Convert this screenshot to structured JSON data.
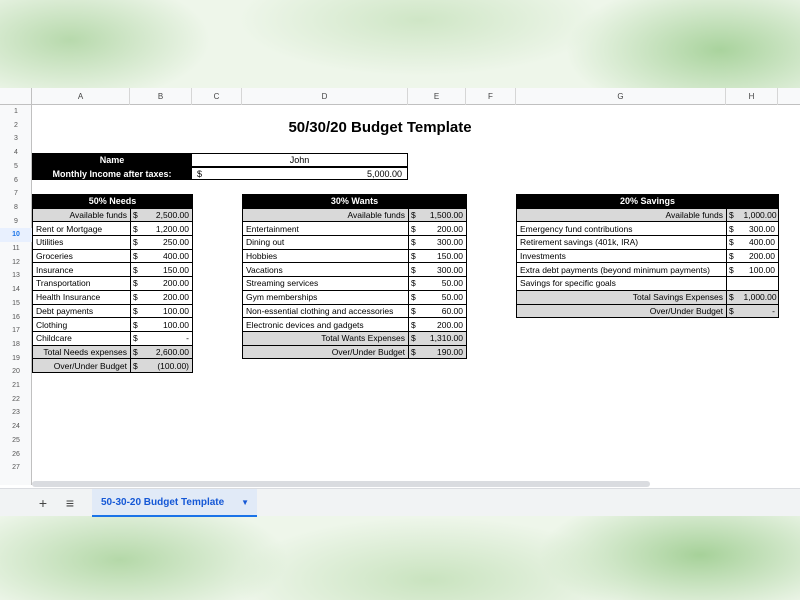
{
  "columns": [
    "A",
    "B",
    "C",
    "D",
    "E",
    "F",
    "G",
    "H"
  ],
  "rows": [
    "1",
    "2",
    "3",
    "4",
    "5",
    "6",
    "7",
    "8",
    "9",
    "10",
    "11",
    "12",
    "13",
    "14",
    "15",
    "16",
    "17",
    "18",
    "19",
    "20",
    "21",
    "22",
    "23",
    "24",
    "25",
    "26",
    "27"
  ],
  "selected_row": "10",
  "title": "50/30/20 Budget Template",
  "info": {
    "name_label": "Name",
    "name_value": "John",
    "income_label": "Monthly Income after taxes:",
    "income_currency": "$",
    "income_value": "5,000.00"
  },
  "needs": {
    "header": "50% Needs",
    "available_label": "Available funds",
    "available_cur": "$",
    "available_value": "2,500.00",
    "items": [
      {
        "label": "Rent or Mortgage",
        "cur": "$",
        "value": "1,200.00"
      },
      {
        "label": "Utilities",
        "cur": "$",
        "value": "250.00"
      },
      {
        "label": "Groceries",
        "cur": "$",
        "value": "400.00"
      },
      {
        "label": "Insurance",
        "cur": "$",
        "value": "150.00"
      },
      {
        "label": "Transportation",
        "cur": "$",
        "value": "200.00"
      },
      {
        "label": "Health Insurance",
        "cur": "$",
        "value": "200.00"
      },
      {
        "label": "Debt payments",
        "cur": "$",
        "value": "100.00"
      },
      {
        "label": "Clothing",
        "cur": "$",
        "value": "100.00"
      },
      {
        "label": "Childcare",
        "cur": "$",
        "value": "-"
      }
    ],
    "total_label": "Total Needs expenses",
    "total_cur": "$",
    "total_value": "2,600.00",
    "over_label": "Over/Under Budget",
    "over_cur": "$",
    "over_value": "(100.00)"
  },
  "wants": {
    "header": "30% Wants",
    "available_label": "Available funds",
    "available_cur": "$",
    "available_value": "1,500.00",
    "items": [
      {
        "label": "Entertainment",
        "cur": "$",
        "value": "200.00"
      },
      {
        "label": "Dining out",
        "cur": "$",
        "value": "300.00"
      },
      {
        "label": "Hobbies",
        "cur": "$",
        "value": "150.00"
      },
      {
        "label": "Vacations",
        "cur": "$",
        "value": "300.00"
      },
      {
        "label": "Streaming services",
        "cur": "$",
        "value": "50.00"
      },
      {
        "label": "Gym memberships",
        "cur": "$",
        "value": "50.00"
      },
      {
        "label": "Non-essential clothing and accessories",
        "cur": "$",
        "value": "60.00"
      },
      {
        "label": "Electronic devices and gadgets",
        "cur": "$",
        "value": "200.00"
      }
    ],
    "total_label": "Total Wants Expenses",
    "total_cur": "$",
    "total_value": "1,310.00",
    "over_label": "Over/Under Budget",
    "over_cur": "$",
    "over_value": "190.00"
  },
  "savings": {
    "header": "20% Savings",
    "available_label": "Available funds",
    "available_cur": "$",
    "available_value": "1,000.00",
    "items": [
      {
        "label": "Emergency fund contributions",
        "cur": "$",
        "value": "300.00"
      },
      {
        "label": "Retirement savings (401k, IRA)",
        "cur": "$",
        "value": "400.00"
      },
      {
        "label": "Investments",
        "cur": "$",
        "value": "200.00"
      },
      {
        "label": "Extra debt payments (beyond minimum payments)",
        "cur": "$",
        "value": "100.00"
      },
      {
        "label": "Savings for specific goals",
        "cur": "",
        "value": ""
      }
    ],
    "total_label": "Total Savings Expenses",
    "total_cur": "$",
    "total_value": "1,000.00",
    "over_label": "Over/Under Budget",
    "over_cur": "$",
    "over_value": "-"
  },
  "tabbar": {
    "add_icon": "+",
    "list_icon": "≡",
    "active_sheet": "50-30-20 Budget Template",
    "caret_icon": "▼"
  }
}
